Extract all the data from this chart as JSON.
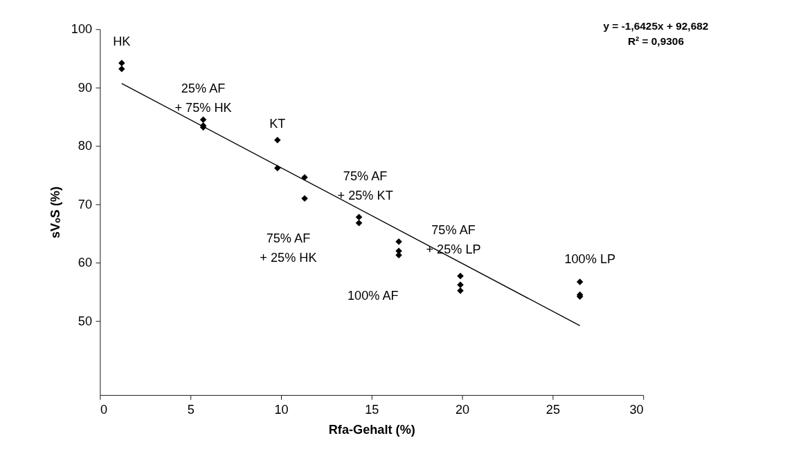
{
  "chart_data": {
    "type": "scatter",
    "xlabel": "Rfa-Gehalt (%)",
    "ylabel": "sVₒS (%)",
    "xlim": [
      0,
      30
    ],
    "xticks": [
      0,
      5,
      10,
      15,
      20,
      25,
      30
    ],
    "ylim": [
      37.3,
      100
    ],
    "yticks": [
      50,
      60,
      70,
      80,
      90,
      100
    ],
    "grid": false,
    "marker": "diamond",
    "series": [
      {
        "type": "scatter",
        "color": "#000000",
        "x": [
          1.2,
          1.2,
          5.7,
          5.7,
          5.7,
          9.8,
          9.8,
          11.3,
          11.3,
          14.3,
          14.3,
          16.5,
          16.5,
          16.5,
          19.9,
          19.9,
          19.9,
          26.5,
          26.5,
          26.5
        ],
        "values": [
          94.2,
          93.2,
          84.5,
          83.5,
          83.2,
          81.0,
          76.2,
          74.6,
          71.0,
          67.8,
          66.8,
          63.6,
          62.0,
          61.3,
          57.7,
          56.2,
          55.2,
          56.7,
          54.5,
          54.2
        ]
      },
      {
        "type": "line",
        "color": "#000000",
        "marker": "none",
        "line_style": "solid",
        "x": [
          1.2,
          26.5
        ],
        "values": [
          90.7,
          49.2
        ]
      }
    ],
    "annotations": [
      {
        "text": "HK",
        "x": 1.2,
        "y": 94.2
      },
      {
        "text": "25% AF\n+ 75% HK",
        "x": 5.7,
        "y": 84.5
      },
      {
        "text": "KT",
        "x": 9.8,
        "y": 81.0
      },
      {
        "text": "75% AF\n+ 25% KT",
        "x": 14.3,
        "y": 67.8
      },
      {
        "text": "75% AF\n+ 25% HK",
        "x": 11.3,
        "y": 71.0
      },
      {
        "text": "100% AF",
        "x": 16.5,
        "y": 61.3
      },
      {
        "text": "75% AF\n+ 25% LP",
        "x": 19.9,
        "y": 57.7
      },
      {
        "text": "100% LP",
        "x": 26.5,
        "y": 56.7
      },
      "y = -1,6425x + 92,682\nR² = 0,9306"
    ]
  }
}
